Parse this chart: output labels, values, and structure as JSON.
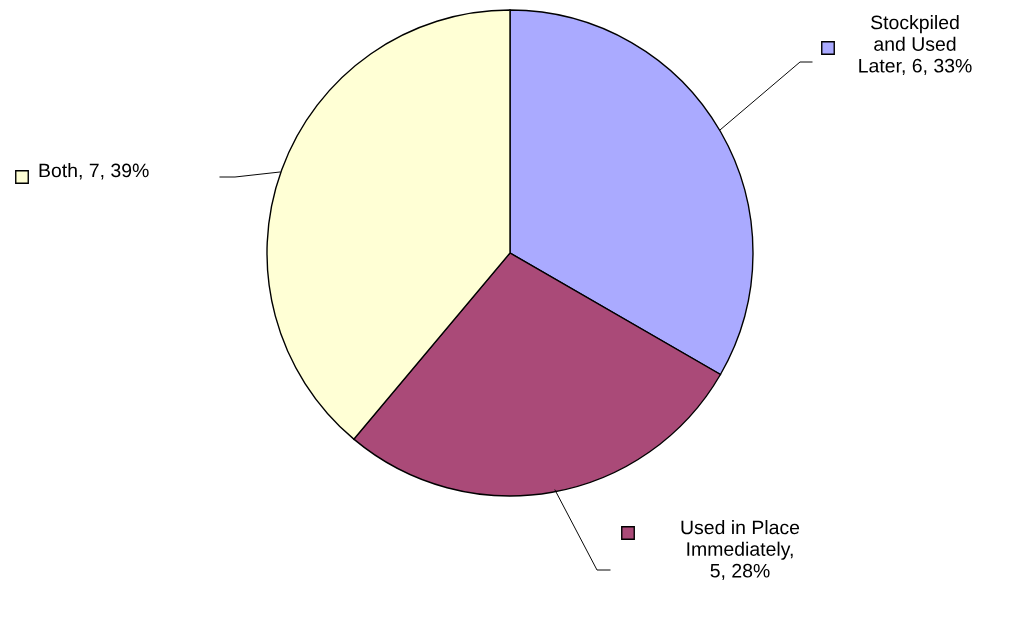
{
  "chart_data": {
    "type": "pie",
    "categories": [
      "Stockpiled and Used Later",
      "Used in Place Immediately",
      "Both"
    ],
    "values": [
      6,
      5,
      7
    ],
    "value_labels": [
      ", 6, 33%",
      ", 5, 28%",
      ", 7, 39%"
    ],
    "colors": [
      "#aaaaff",
      "#aa4a78",
      "#ffffd5"
    ]
  }
}
